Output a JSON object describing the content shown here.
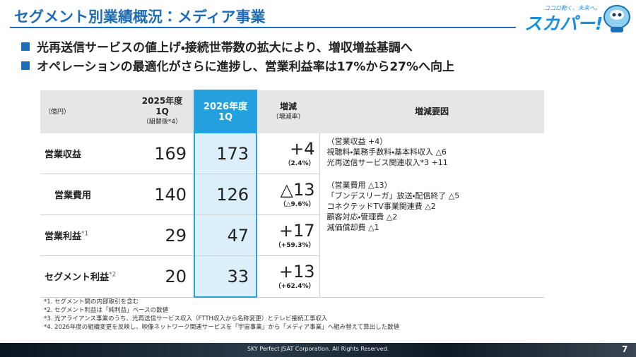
{
  "header": {
    "title": "セグメント別業績概況：メディア事業",
    "logo_tagline": "ココロ動く、未来へ。",
    "logo_text": "スカパー!"
  },
  "bullets": [
    "光再送信サービスの値上げ・接続世帯数の拡大により、増収増益基調へ",
    "オペレーションの最適化がさらに進捗し、営業利益率は17%から27%へ向上"
  ],
  "table": {
    "unit": "（億円）",
    "columns": [
      {
        "lines": [
          "2025年度",
          "1Q"
        ],
        "note": "（組替後*4）"
      },
      {
        "lines": [
          "2026年度",
          "1Q"
        ]
      },
      {
        "lines": [
          "増減"
        ],
        "note": "（増減率）"
      },
      {
        "lines": [
          "増減要因"
        ]
      }
    ],
    "rows": [
      {
        "label": "営業収益",
        "v2025": "169",
        "v2026": "173",
        "change": "+4",
        "rate": "（2.4%）"
      },
      {
        "label": "営業費用",
        "v2025": "140",
        "v2026": "126",
        "change": "△13",
        "rate": "（△9.6%）"
      },
      {
        "label": "営業利益",
        "sup": "*1",
        "v2025": "29",
        "v2026": "47",
        "change": "+17",
        "rate": "（+59.3%）"
      },
      {
        "label": "セグメント利益",
        "sup": "*2",
        "v2025": "20",
        "v2026": "33",
        "change": "+13",
        "rate": "（+62.4%）"
      }
    ],
    "reasons": [
      [
        "（営業収益 +4）",
        "視聴料・業務手数料・基本料収入 △6",
        "光再送信サービス関連収入*3 +11"
      ],
      [
        "（営業費用 △13）",
        "「ブンデスリーガ」放送・配信終了 △5",
        "コネクテッドTV事業関連費 △2",
        "顧客対応・管理費 △2",
        "減価償却費 △1"
      ]
    ]
  },
  "footnotes": [
    "*1. セグメント間の内部取引を含む",
    "*2. セグメント利益は「純利益」ベースの数値",
    "*3. 光アライアンス事業のうち、光再送信サービス収入（FTTH収入から名称変更）とテレビ接続工事収入",
    "*4. 2026年度の組織変更を反映し、映像ネットワーク関連サービスを「宇宙事業」から「メディア事業」へ組み替えて算出した数値"
  ],
  "footer": {
    "copyright": "SKY Perfect JSAT Corporation. All Rights Reserved.",
    "page": "7"
  }
}
